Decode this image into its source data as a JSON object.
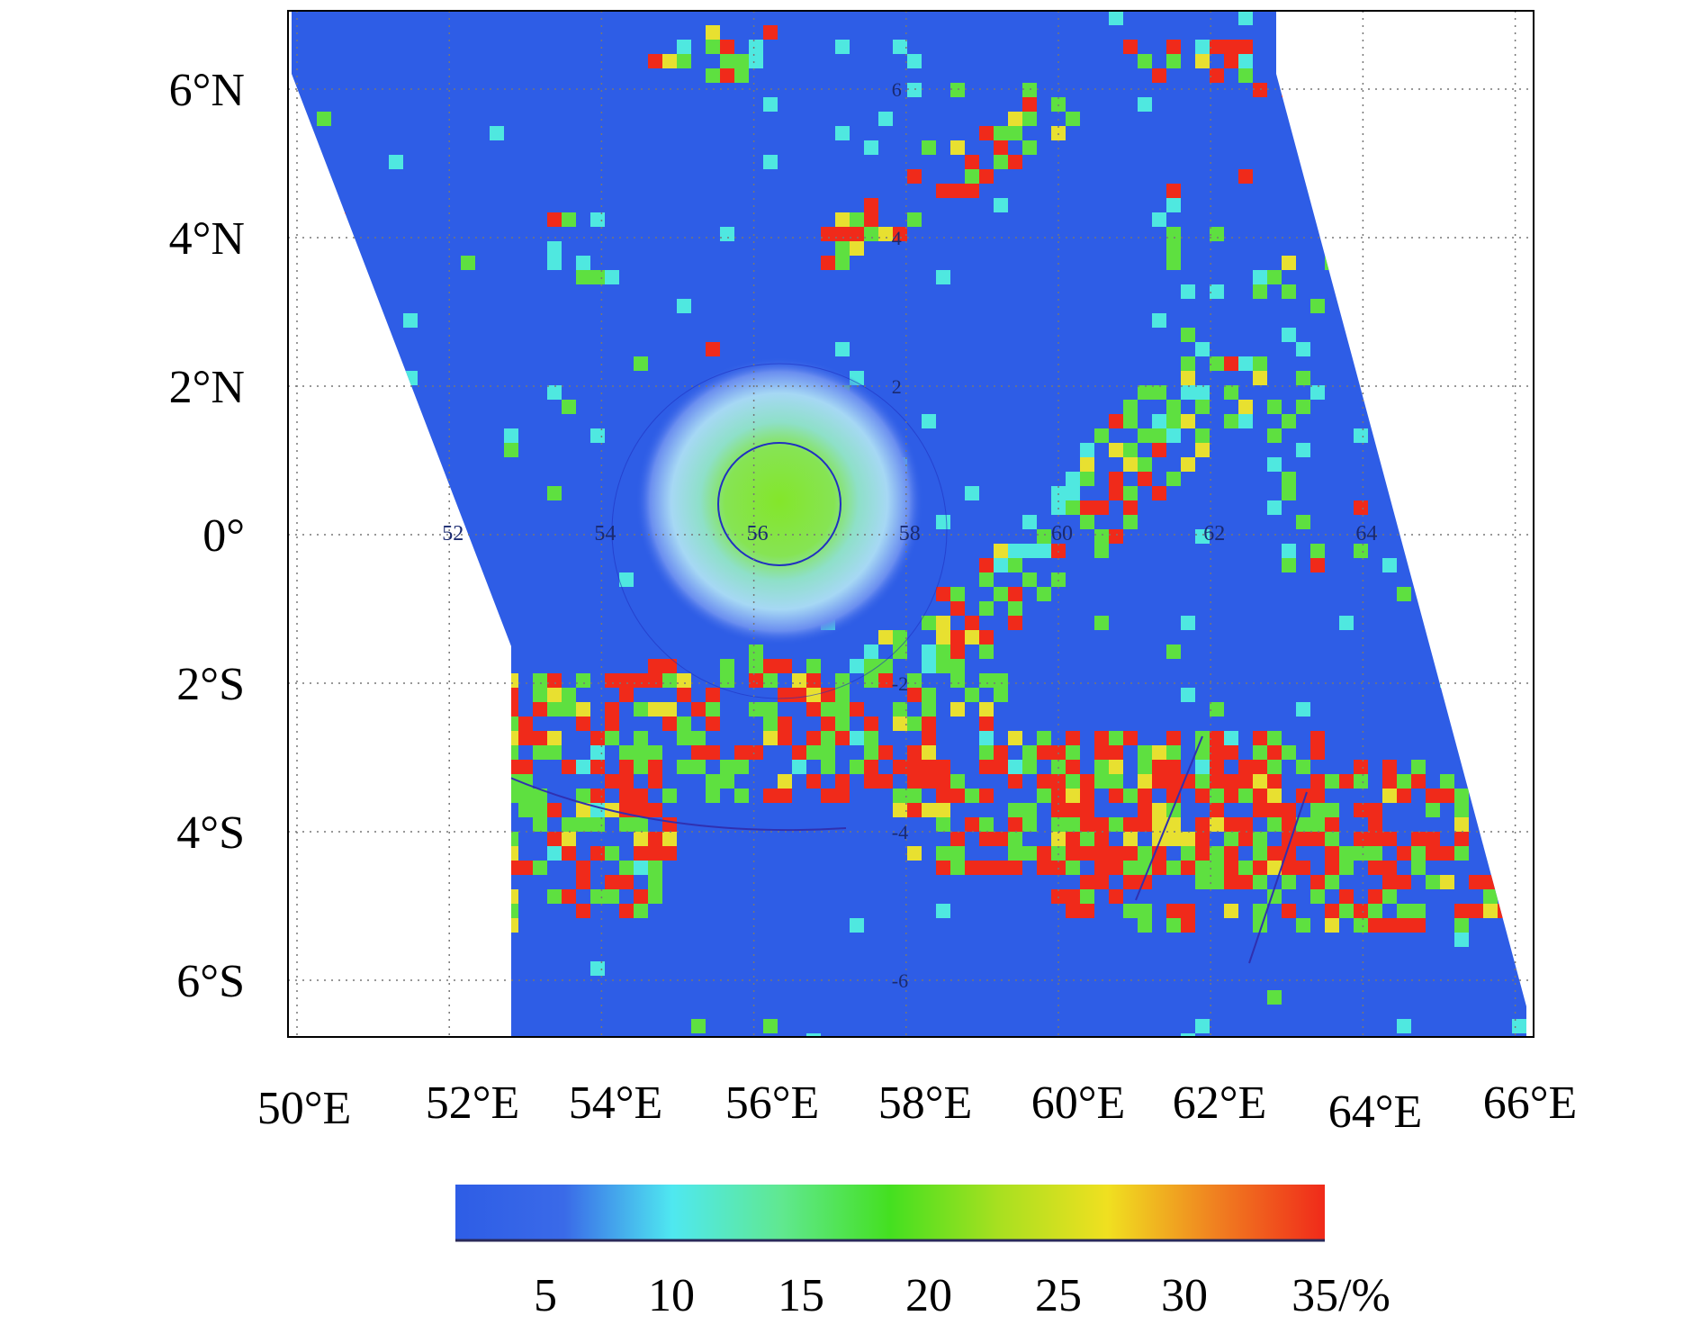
{
  "map": {
    "lat_labels": [
      "6°N",
      "4°N",
      "2°N",
      "0°",
      "2°S",
      "4°S",
      "6°S"
    ],
    "lon_labels": [
      "50°E",
      "52°E",
      "54°E",
      "56°E",
      "58°E",
      "60°E",
      "62°E",
      "64°E",
      "66°E"
    ],
    "inner_lon_labels": [
      "52",
      "54",
      "56",
      "58",
      "60",
      "62",
      "64"
    ],
    "inner_lat_labels": [
      "6",
      "4",
      "2",
      "-2",
      "-4",
      "-6"
    ],
    "colors": {
      "background": "#ffffff",
      "ocean_low": "#2e5de6",
      "cyan": "#4fe8e0",
      "green": "#5ee040",
      "yellow": "#e8e030",
      "red": "#f02a1a",
      "grid": "#777777"
    },
    "grid": "dotted"
  },
  "colorbar": {
    "ticks": [
      "5",
      "10",
      "15",
      "20",
      "25",
      "30",
      "35/%"
    ],
    "gradient": [
      "#2e5de6",
      "#3a6ae8",
      "#4fe8f0",
      "#60e890",
      "#44e020",
      "#a8e020",
      "#f0e020",
      "#f08020",
      "#f02a1a"
    ]
  }
}
